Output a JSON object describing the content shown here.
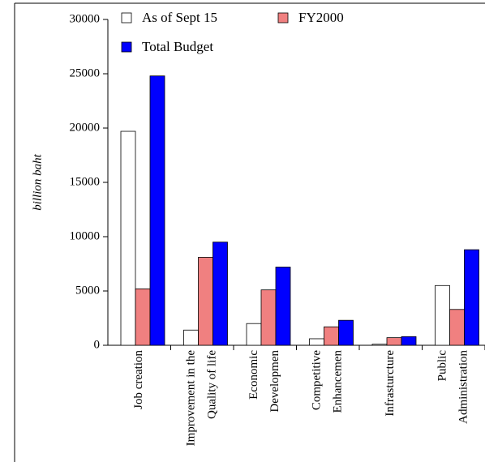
{
  "chart_data": {
    "type": "bar",
    "y_label": "billion baht",
    "categories": [
      [
        "Job creation"
      ],
      [
        "Improvement in the",
        "Quality of life"
      ],
      [
        "Economic",
        "Developmen"
      ],
      [
        "Competitive",
        "Enhancemen"
      ],
      [
        "Infrasturcture"
      ],
      [
        "Public",
        "Administration"
      ]
    ],
    "series": [
      {
        "name": "As of Sept 15",
        "color": "#ffffff",
        "values": [
          19700,
          1400,
          2000,
          600,
          100,
          5500
        ]
      },
      {
        "name": "FY2000",
        "color": "#f08080",
        "values": [
          5200,
          8100,
          5100,
          1700,
          700,
          3300
        ]
      },
      {
        "name": "Total Budget",
        "color": "#0000ff",
        "values": [
          24800,
          9500,
          7200,
          2300,
          800,
          8800
        ]
      }
    ],
    "ylim": [
      0,
      30000
    ],
    "yticks": [
      0,
      5000,
      10000,
      15000,
      20000,
      25000,
      30000
    ]
  }
}
